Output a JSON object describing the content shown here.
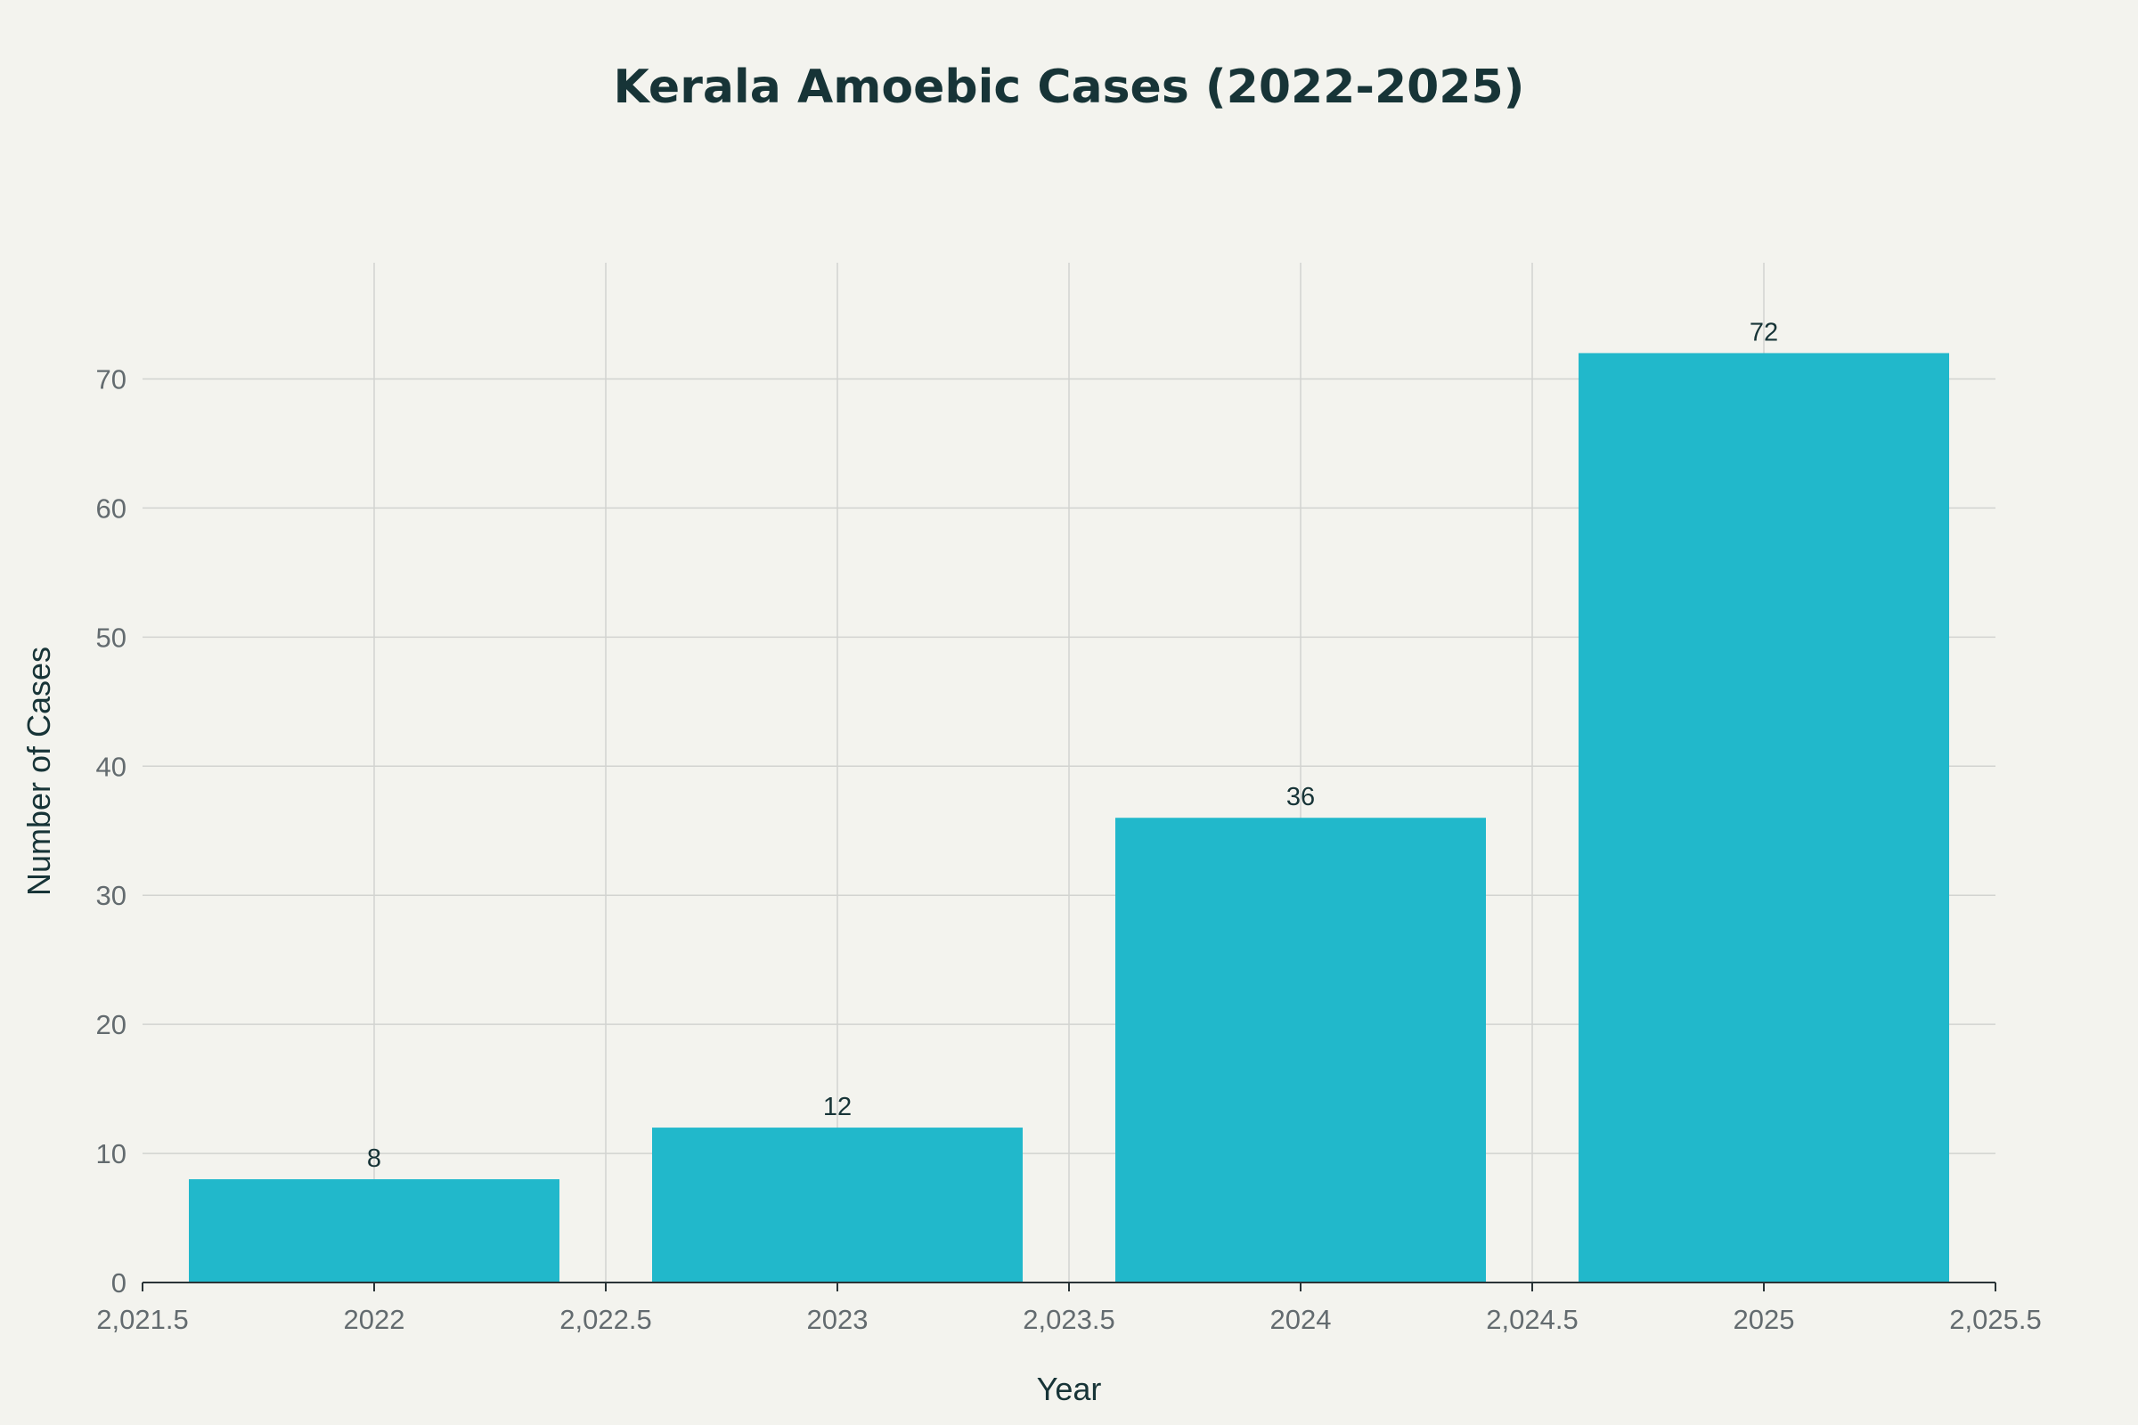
{
  "chart_data": {
    "type": "bar",
    "title": "Kerala Amoebic Cases (2022-2025)",
    "xlabel": "Year",
    "ylabel": "Number of Cases",
    "categories": [
      2022,
      2023,
      2024,
      2025
    ],
    "values": [
      8,
      12,
      36,
      72
    ],
    "data_labels": [
      "8",
      "12",
      "36",
      "72"
    ],
    "xlim": [
      2021.6,
      2025.5
    ],
    "ylim": [
      0,
      79
    ],
    "x_ticks": [
      2021.5,
      2022,
      2022.5,
      2023,
      2023.5,
      2024,
      2024.5,
      2025,
      2025.5
    ],
    "x_tick_labels": [
      "2,021.5",
      "2022",
      "2,022.5",
      "2023",
      "2,023.5",
      "2024",
      "2,024.5",
      "2025",
      "2,025.5"
    ],
    "y_ticks": [
      0,
      10,
      20,
      30,
      40,
      50,
      60,
      70
    ],
    "y_tick_labels": [
      "0",
      "10",
      "20",
      "30",
      "40",
      "50",
      "60",
      "70"
    ],
    "bar_width": 0.8,
    "grid": true,
    "legend": false,
    "colors": {
      "bar": "#21b8cb",
      "background": "#f3f3ee",
      "grid": "#d2d3d0",
      "title": "#173437",
      "tick_text": "#636b6f"
    }
  }
}
